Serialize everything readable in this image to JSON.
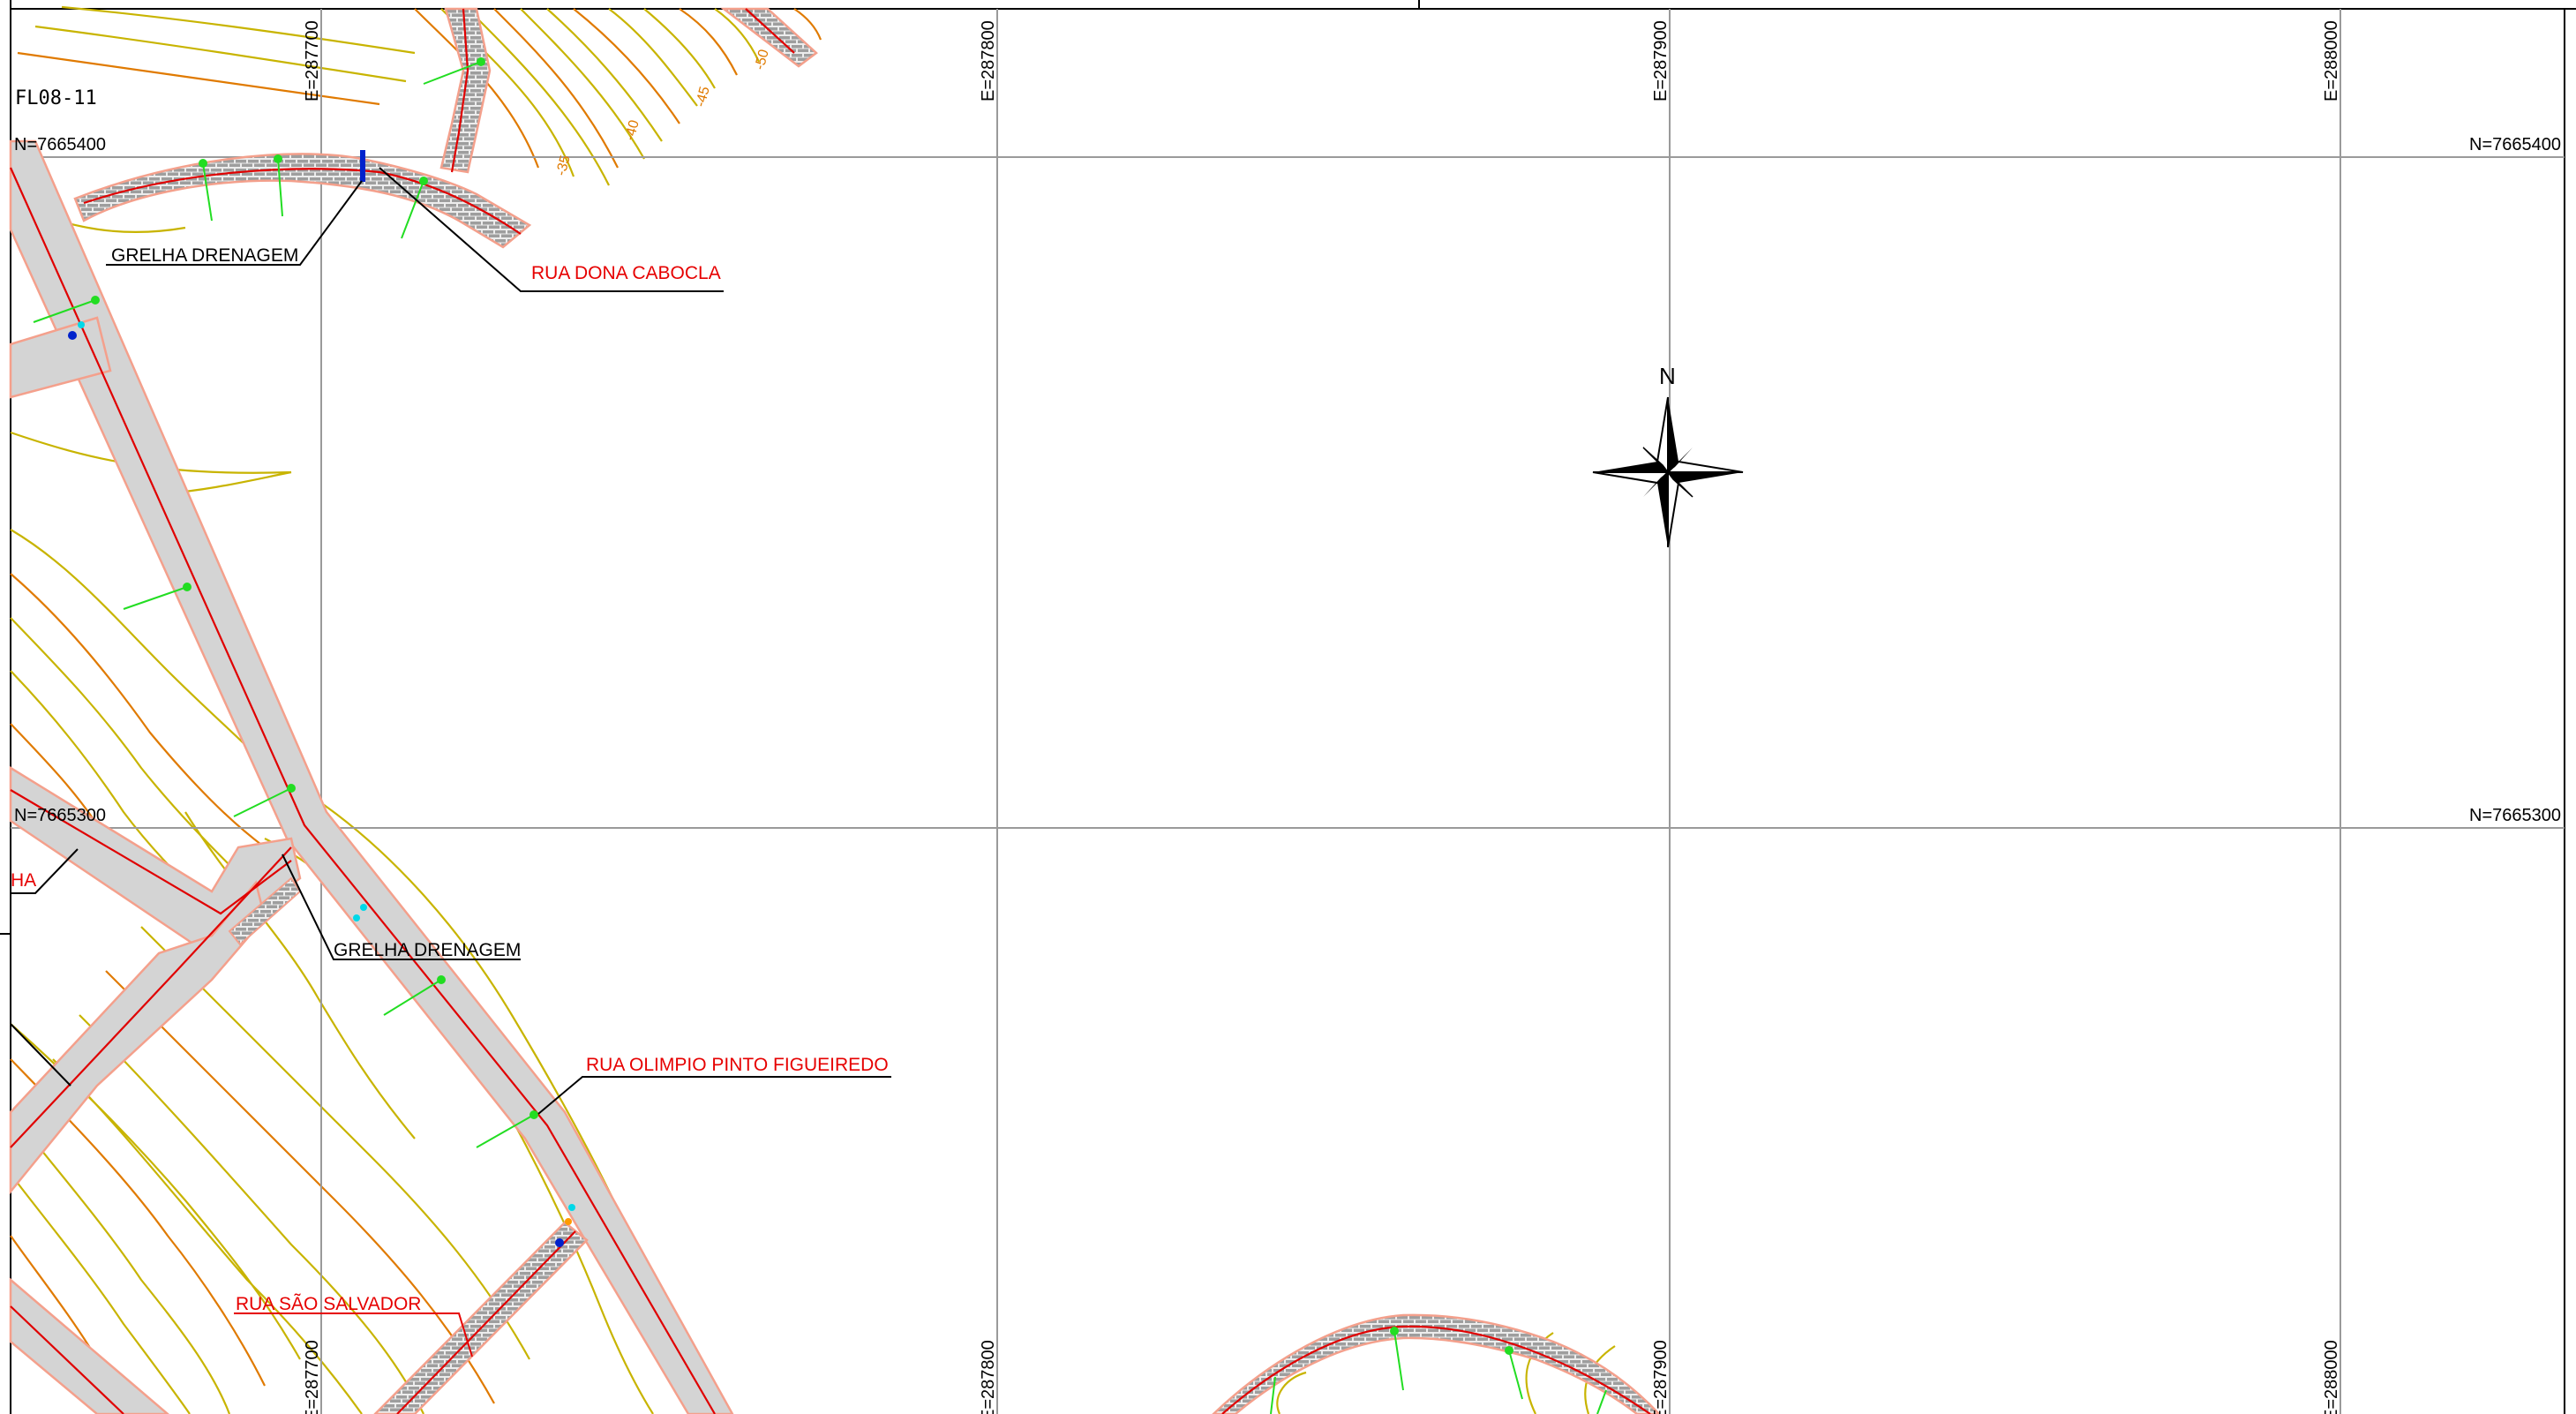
{
  "sheet": {
    "label": "FL08-11"
  },
  "grid": {
    "easting": [
      "E=287700",
      "E=287800",
      "E=287900",
      "E=288000"
    ],
    "northing": [
      "N=7665400",
      "N=7665300"
    ]
  },
  "north_arrow": {
    "letter": "N"
  },
  "contour_labels": [
    "-35",
    "-40",
    "-45",
    "-50"
  ],
  "annotations": {
    "grelha_top": "GRELHA DRENAGEM",
    "grelha_mid": "GRELHA DRENAGEM",
    "rua_dona_cabocla": "RUA DONA CABOCLA",
    "rua_olimpio": "RUA OLIMPIO PINTO FIGUEIREDO",
    "rua_sao_salvador": "RUA SÃO SALVADOR",
    "partial_street": "HA"
  },
  "colors": {
    "road_fill": "#d4d4d4",
    "road_edge": "#f4a08c",
    "centerline": "#e00000",
    "contour_yellow": "#c8b400",
    "contour_orange": "#e07a00",
    "grid": "#9a9a9a",
    "station": "#22dd22",
    "street_label": "#e60000"
  }
}
